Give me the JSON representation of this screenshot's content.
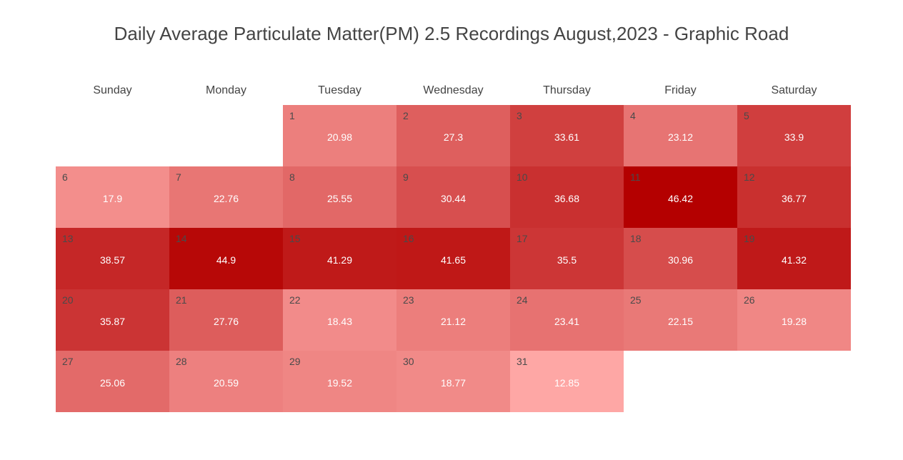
{
  "chart_data": {
    "type": "heatmap",
    "title": "Daily Average Particulate Matter(PM) 2.5 Recordings August,2023 - Graphic Road",
    "weekdays": [
      "Sunday",
      "Monday",
      "Tuesday",
      "Wednesday",
      "Thursday",
      "Friday",
      "Saturday"
    ],
    "first_weekday_index": 2,
    "days": [
      1,
      2,
      3,
      4,
      5,
      6,
      7,
      8,
      9,
      10,
      11,
      12,
      13,
      14,
      15,
      16,
      17,
      18,
      19,
      20,
      21,
      22,
      23,
      24,
      25,
      26,
      27,
      28,
      29,
      30,
      31
    ],
    "values": [
      20.98,
      27.3,
      33.61,
      23.12,
      33.9,
      17.9,
      22.76,
      25.55,
      30.44,
      36.68,
      46.42,
      36.77,
      38.57,
      44.9,
      41.29,
      41.65,
      35.5,
      30.96,
      41.32,
      35.87,
      27.76,
      18.43,
      21.12,
      23.41,
      22.15,
      19.28,
      25.06,
      20.59,
      19.52,
      18.77,
      12.85
    ],
    "color_scale": {
      "low": "#fea7a5",
      "high": "#b40000"
    },
    "value_range": [
      12.85,
      46.42
    ]
  }
}
